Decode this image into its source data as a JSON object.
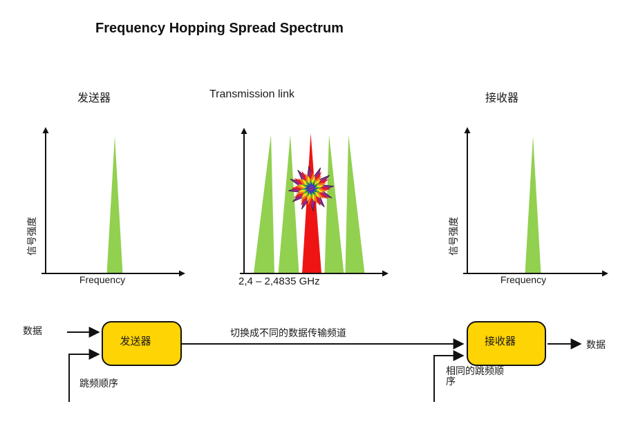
{
  "title": "Frequency Hopping Spread Spectrum",
  "headers": {
    "transmitter": "发送器",
    "link": "Transmission link",
    "receiver": "接收器"
  },
  "charts": {
    "transmitter": {
      "y_axis_label": "信号强度",
      "x_axis_label": "Frequency",
      "spikes": [
        {
          "color": "green"
        }
      ]
    },
    "link": {
      "x_axis_label": "2,4 – 2,4835 GHz",
      "spikes": [
        {
          "color": "green"
        },
        {
          "color": "green"
        },
        {
          "color": "red"
        },
        {
          "color": "green"
        },
        {
          "color": "green"
        }
      ],
      "interference_icon": "starburst-explosion"
    },
    "receiver": {
      "y_axis_label": "信号强度",
      "x_axis_label": "Frequency",
      "spikes": [
        {
          "color": "green"
        }
      ]
    }
  },
  "flow": {
    "data_in": "数据",
    "transmitter_box": "发送器",
    "hop_sequence": "跳频顺序",
    "channel_switch": "切换成不同的数据传输频道",
    "receiver_box": "接收器",
    "same_hop_sequence": "相同的跳频顺序",
    "data_out": "数据"
  },
  "colors": {
    "spike_green": "#92D050",
    "spike_red": "#EE1414",
    "box_fill": "#FFD405",
    "line": "#111111",
    "starburst_rings": [
      "#93278F",
      "#E31B23",
      "#F47B20",
      "#F7E612",
      "#4DB32E",
      "#2E3CB0",
      "#7A2FA0"
    ]
  }
}
